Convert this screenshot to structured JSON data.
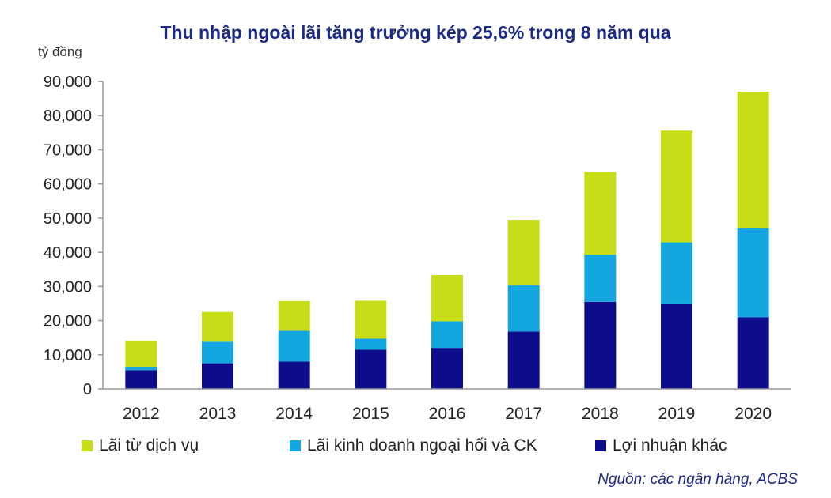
{
  "chart_data": {
    "type": "bar",
    "stacked": true,
    "title": "Thu nhập ngoài lãi tăng trưởng kép 25,6% trong 8 năm qua",
    "ylabel": "tỷ đồng",
    "ylim": [
      0,
      90000
    ],
    "yticks": [
      "0",
      "10,000",
      "20,000",
      "30,000",
      "40,000",
      "50,000",
      "60,000",
      "70,000",
      "80,000",
      "90,000"
    ],
    "categories": [
      "2012",
      "2013",
      "2014",
      "2015",
      "2016",
      "2017",
      "2018",
      "2019",
      "2020"
    ],
    "series": [
      {
        "name": "Lợi nhuận khác",
        "color": "#0d0d8c",
        "values": [
          5500,
          7500,
          8000,
          11500,
          12000,
          16800,
          25500,
          25000,
          21000
        ]
      },
      {
        "name": "Lãi kinh doanh ngoại hối và CK",
        "color": "#14a6df",
        "values": [
          1000,
          6300,
          9000,
          3200,
          7800,
          13500,
          13800,
          17900,
          26000
        ]
      },
      {
        "name": "Lãi từ dịch vụ",
        "color": "#c6dd18",
        "values": [
          7500,
          8700,
          8700,
          11100,
          13500,
          19200,
          24200,
          32700,
          40000
        ]
      }
    ],
    "legend_order": [
      2,
      1,
      0
    ],
    "grid": false,
    "legend_position": "bottom",
    "source": "Nguồn: các ngân hàng, ACBS"
  }
}
